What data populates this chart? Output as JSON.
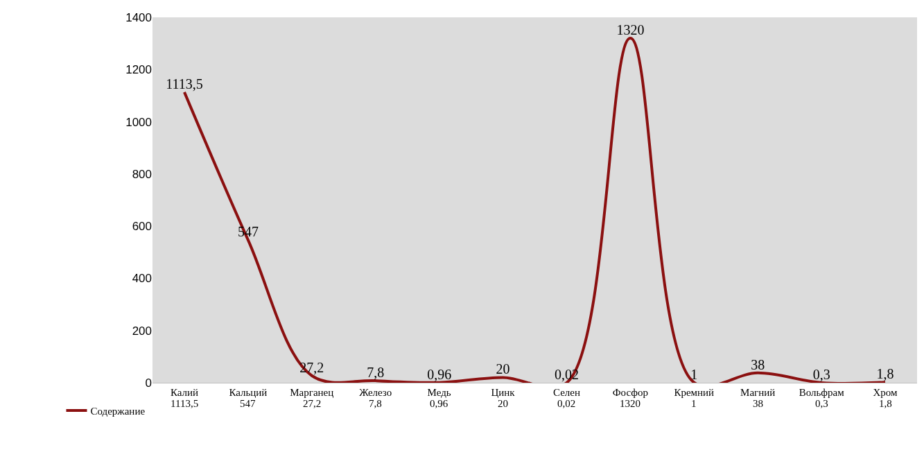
{
  "chart_data": {
    "type": "line",
    "categories": [
      "Калий",
      "Кальций",
      "Марганец",
      "Железо",
      "Медь",
      "Цинк",
      "Селен",
      "Фосфор",
      "Кремний",
      "Магний",
      "Вольфрам",
      "Хром"
    ],
    "series": [
      {
        "name": "Содержание",
        "color": "#8b1010",
        "values": [
          1113.5,
          547,
          27.2,
          7.8,
          0.96,
          20,
          0.02,
          1320,
          1,
          38,
          0.3,
          1.8
        ],
        "value_labels": [
          "1113,5",
          "547",
          "27,2",
          "7,8",
          "0,96",
          "20",
          "0,02",
          "1320",
          "1",
          "38",
          "0,3",
          "1,8"
        ]
      }
    ],
    "ylim": [
      0,
      1400
    ],
    "yticks": [
      0,
      200,
      400,
      600,
      800,
      1000,
      1200,
      1400
    ],
    "grid": false,
    "legend": "bottom left",
    "data_labels": true,
    "marker": "none",
    "line_style": "solid"
  }
}
